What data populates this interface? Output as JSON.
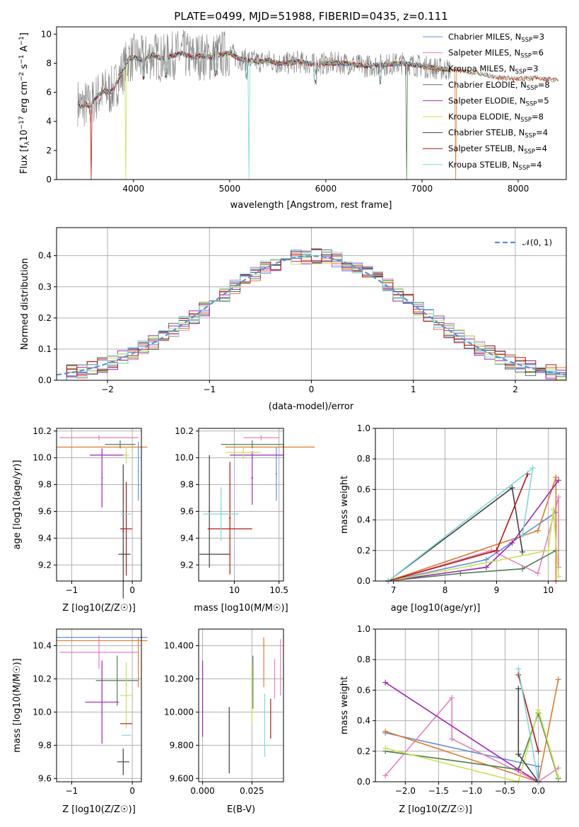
{
  "chart_data": [
    {
      "type": "line",
      "title": "PLATE=0499, MJD=51988, FIBERID=0435, z=0.111",
      "xlabel": "wavelength [Angstrom, rest frame]",
      "ylabel": "Flux [f_λ10^-17 erg cm^-2 s^-1 A^-1]",
      "xlim": [
        3200,
        8500
      ],
      "ylim": [
        0,
        10.5
      ],
      "xticks": [
        4000,
        5000,
        6000,
        7000,
        8000
      ],
      "yticks": [
        0,
        2,
        4,
        6,
        8,
        10
      ],
      "grid": false,
      "legend": "top-right",
      "series": [
        {
          "name": "Chabrier MILES",
          "nssp": "3",
          "color": "#5b8fdd"
        },
        {
          "name": "Salpeter MILES",
          "nssp": "6",
          "color": "#e87fbf"
        },
        {
          "name": "Kroupa MILES",
          "nssp": "3",
          "color": "#e07b2c"
        },
        {
          "name": "Chabrier ELODIE",
          "nssp": "8",
          "color": "#4f7f55"
        },
        {
          "name": "Salpeter ELODIE",
          "nssp": "5",
          "color": "#9b27b5"
        },
        {
          "name": "Kroupa ELODIE",
          "nssp": "8",
          "color": "#c9e34e"
        },
        {
          "name": "Chabrier STELIB",
          "nssp": "4",
          "color": "#404040"
        },
        {
          "name": "Salpeter STELIB",
          "nssp": "4",
          "color": "#b81414"
        },
        {
          "name": "Kroupa STELIB",
          "nssp": "4",
          "color": "#7fd8dc"
        }
      ],
      "spectrum_shape": {
        "x": [
          3400,
          3450,
          3500,
          3550,
          3600,
          3650,
          3700,
          3750,
          3800,
          3850,
          3900,
          3950,
          4000,
          4100,
          4200,
          4300,
          4400,
          4500,
          4600,
          4700,
          4800,
          4900,
          5000,
          5100,
          5200,
          5300,
          5400,
          5500,
          5600,
          5700,
          5800,
          5900,
          6000,
          6200,
          6400,
          6600,
          6800,
          7000,
          7200,
          7400,
          7600,
          7800,
          8000,
          8200,
          8400
        ],
        "y": [
          5.6,
          5.0,
          5.2,
          5.0,
          5.6,
          5.9,
          6.1,
          6.0,
          6.3,
          7.0,
          7.6,
          8.3,
          8.4,
          8.2,
          8.6,
          8.3,
          8.5,
          8.7,
          8.4,
          8.5,
          8.4,
          8.6,
          8.7,
          8.3,
          8.2,
          8.1,
          8.2,
          8.0,
          8.0,
          8.1,
          8.0,
          7.9,
          8.0,
          8.0,
          7.8,
          7.9,
          8.0,
          7.8,
          7.6,
          7.5,
          7.3,
          7.0,
          6.9,
          7.0,
          6.8
        ]
      }
    },
    {
      "type": "histogram",
      "xlabel": "(data-model)/error",
      "ylabel": "Normed distribution",
      "xlim": [
        -2.5,
        2.5
      ],
      "ylim": [
        0,
        0.49
      ],
      "xticks": [
        -2,
        -1,
        0,
        1,
        2
      ],
      "yticks": [
        0.0,
        0.1,
        0.2,
        0.3,
        0.4
      ],
      "grid": true,
      "legend": "top-right",
      "reference_curve": {
        "name": "𝒩(0, 1)",
        "color": "#5b8fdd"
      }
    },
    {
      "type": "scatter",
      "xlabel": "Z [log10(Z/Z☉)]",
      "ylabel": "age  [log10(age/yr)]",
      "xlim": [
        -1.25,
        0.15
      ],
      "ylim": [
        9.08,
        10.22
      ],
      "xticks": [
        -1,
        0
      ],
      "yticks": [
        9.2,
        9.4,
        9.6,
        9.8,
        10.0,
        10.2
      ],
      "grid": true
    },
    {
      "type": "scatter",
      "xlabel": "mass [log10(M/M☉)]",
      "xlim": [
        9.6,
        10.55
      ],
      "ylim": [
        9.08,
        10.22
      ],
      "xticks": [
        10,
        10.5
      ],
      "yticks": [
        9.2,
        9.4,
        9.6,
        9.8,
        10.0,
        10.2
      ],
      "grid": true
    },
    {
      "type": "line",
      "xlabel": "age  [log10(age/yr)]",
      "ylabel": "mass weight",
      "xlim": [
        6.65,
        10.35
      ],
      "ylim": [
        0,
        1.0
      ],
      "xticks": [
        7,
        8,
        9,
        10
      ],
      "yticks": [
        0.0,
        0.2,
        0.4,
        0.6,
        0.8,
        1.0
      ],
      "grid": true
    },
    {
      "type": "scatter",
      "xlabel": "Z [log10(Z/Z☉)]",
      "ylabel": "mass [log10(M/M☉)]",
      "xlim": [
        -1.25,
        0.15
      ],
      "ylim": [
        9.58,
        10.5
      ],
      "xticks": [
        -1,
        0
      ],
      "yticks": [
        9.6,
        9.8,
        10.0,
        10.2,
        10.4
      ],
      "grid": true
    },
    {
      "type": "scatter",
      "xlabel": "E(B-V)",
      "xlim": [
        -0.002,
        0.041
      ],
      "ylim": [
        9.58,
        10.5
      ],
      "xticks": [
        0.0,
        0.025
      ],
      "yticks": [
        9.6,
        9.8,
        10.0,
        10.2,
        10.4
      ],
      "grid": true
    },
    {
      "type": "line",
      "xlabel": "Z [log10(Z/Z☉)]",
      "ylabel": "mass weight",
      "xlim": [
        -2.45,
        0.42
      ],
      "ylim": [
        0,
        1.0
      ],
      "xticks": [
        -2.0,
        -1.5,
        -1.0,
        -0.5,
        0.0
      ],
      "yticks": [
        0.0,
        0.2,
        0.4,
        0.6,
        0.8,
        1.0
      ],
      "grid": true
    }
  ]
}
